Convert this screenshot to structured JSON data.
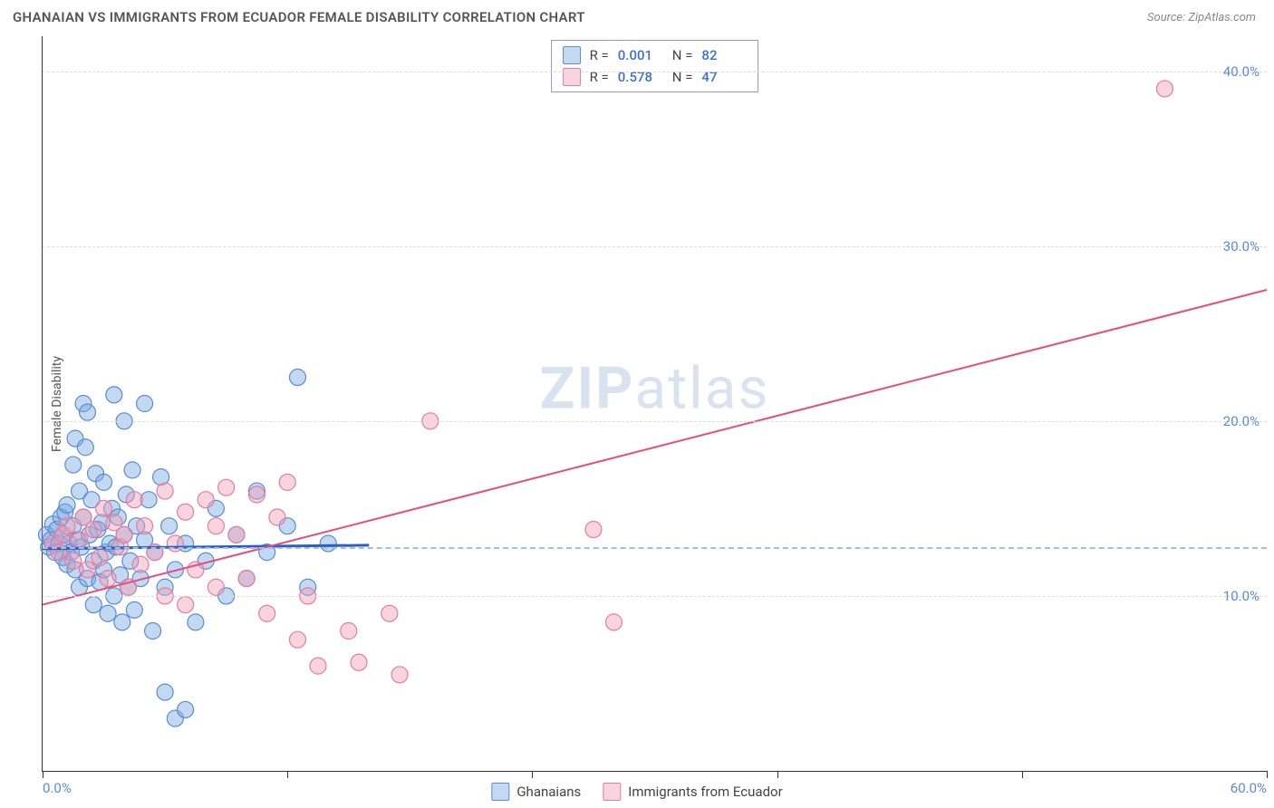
{
  "header": {
    "title": "GHANAIAN VS IMMIGRANTS FROM ECUADOR FEMALE DISABILITY CORRELATION CHART",
    "source": "Source: ZipAtlas.com"
  },
  "ylabel": "Female Disability",
  "watermark_a": "ZIP",
  "watermark_b": "atlas",
  "legend_top": {
    "series1": {
      "r_label": "R =",
      "r_value": "0.001",
      "n_label": "N =",
      "n_value": "82"
    },
    "series2": {
      "r_label": "R =",
      "r_value": "0.578",
      "n_label": "N =",
      "n_value": "47"
    }
  },
  "legend_bottom": {
    "series1_label": "Ghanaians",
    "series2_label": "Immigrants from Ecuador"
  },
  "chart": {
    "type": "scatter",
    "xlim": [
      0,
      60
    ],
    "ylim": [
      0,
      42
    ],
    "x_ticks": [
      0,
      12,
      24,
      36,
      48,
      60
    ],
    "x_tick_labels": {
      "0": "0.0%",
      "60": "60.0%"
    },
    "y_gridlines": [
      10,
      20,
      30,
      40
    ],
    "y_tick_labels": {
      "10": "10.0%",
      "20": "20.0%",
      "30": "30.0%",
      "40": "40.0%"
    },
    "mid_dash_y": 12.8,
    "colors": {
      "series1_fill": "rgba(120,170,225,0.45)",
      "series1_stroke": "#5b8bd4",
      "series2_fill": "rgba(240,160,185,0.45)",
      "series2_stroke": "#e87ba0",
      "trend1": "#2c5fc4",
      "trend2": "#e94b7a",
      "grid": "#ddd",
      "axis": "#333",
      "tick_text": "#5b8bd4"
    },
    "marker_radius": 9,
    "trend_width": 2,
    "series1_points": [
      [
        0.2,
        13.5
      ],
      [
        0.3,
        12.8
      ],
      [
        0.4,
        13.2
      ],
      [
        0.5,
        14.1
      ],
      [
        0.6,
        12.5
      ],
      [
        0.7,
        13.8
      ],
      [
        0.8,
        13.0
      ],
      [
        0.9,
        14.5
      ],
      [
        1.0,
        12.2
      ],
      [
        1.0,
        13.5
      ],
      [
        1.1,
        14.8
      ],
      [
        1.2,
        11.8
      ],
      [
        1.2,
        15.2
      ],
      [
        1.3,
        13.0
      ],
      [
        1.4,
        12.5
      ],
      [
        1.5,
        14.0
      ],
      [
        1.5,
        17.5
      ],
      [
        1.6,
        11.5
      ],
      [
        1.6,
        19.0
      ],
      [
        1.7,
        13.2
      ],
      [
        1.8,
        10.5
      ],
      [
        1.8,
        16.0
      ],
      [
        1.9,
        12.8
      ],
      [
        2.0,
        14.5
      ],
      [
        2.0,
        21.0
      ],
      [
        2.1,
        18.5
      ],
      [
        2.2,
        11.0
      ],
      [
        2.2,
        20.5
      ],
      [
        2.3,
        13.5
      ],
      [
        2.4,
        15.5
      ],
      [
        2.5,
        9.5
      ],
      [
        2.5,
        12.0
      ],
      [
        2.6,
        17.0
      ],
      [
        2.7,
        13.8
      ],
      [
        2.8,
        10.8
      ],
      [
        2.9,
        14.2
      ],
      [
        3.0,
        11.5
      ],
      [
        3.0,
        16.5
      ],
      [
        3.1,
        12.5
      ],
      [
        3.2,
        9.0
      ],
      [
        3.3,
        13.0
      ],
      [
        3.4,
        15.0
      ],
      [
        3.5,
        10.0
      ],
      [
        3.5,
        21.5
      ],
      [
        3.6,
        12.8
      ],
      [
        3.7,
        14.5
      ],
      [
        3.8,
        11.2
      ],
      [
        3.9,
        8.5
      ],
      [
        4.0,
        13.5
      ],
      [
        4.0,
        20.0
      ],
      [
        4.1,
        15.8
      ],
      [
        4.2,
        10.5
      ],
      [
        4.3,
        12.0
      ],
      [
        4.4,
        17.2
      ],
      [
        4.5,
        9.2
      ],
      [
        4.6,
        14.0
      ],
      [
        4.8,
        11.0
      ],
      [
        5.0,
        13.2
      ],
      [
        5.0,
        21.0
      ],
      [
        5.2,
        15.5
      ],
      [
        5.4,
        8.0
      ],
      [
        5.5,
        12.5
      ],
      [
        5.8,
        16.8
      ],
      [
        6.0,
        10.5
      ],
      [
        6.0,
        4.5
      ],
      [
        6.2,
        14.0
      ],
      [
        6.5,
        3.0
      ],
      [
        6.5,
        11.5
      ],
      [
        7.0,
        13.0
      ],
      [
        7.0,
        3.5
      ],
      [
        7.5,
        8.5
      ],
      [
        8.0,
        12.0
      ],
      [
        8.5,
        15.0
      ],
      [
        9.0,
        10.0
      ],
      [
        9.5,
        13.5
      ],
      [
        10.0,
        11.0
      ],
      [
        10.5,
        16.0
      ],
      [
        11.0,
        12.5
      ],
      [
        12.0,
        14.0
      ],
      [
        12.5,
        22.5
      ],
      [
        13.0,
        10.5
      ],
      [
        14.0,
        13.0
      ]
    ],
    "series2_points": [
      [
        0.5,
        13.0
      ],
      [
        0.8,
        12.5
      ],
      [
        1.0,
        13.5
      ],
      [
        1.2,
        14.0
      ],
      [
        1.5,
        12.0
      ],
      [
        1.8,
        13.2
      ],
      [
        2.0,
        14.5
      ],
      [
        2.2,
        11.5
      ],
      [
        2.5,
        13.8
      ],
      [
        2.8,
        12.2
      ],
      [
        3.0,
        15.0
      ],
      [
        3.2,
        11.0
      ],
      [
        3.5,
        14.2
      ],
      [
        3.8,
        12.8
      ],
      [
        4.0,
        13.5
      ],
      [
        4.2,
        10.5
      ],
      [
        4.5,
        15.5
      ],
      [
        4.8,
        11.8
      ],
      [
        5.0,
        14.0
      ],
      [
        5.5,
        12.5
      ],
      [
        6.0,
        16.0
      ],
      [
        6.0,
        10.0
      ],
      [
        6.5,
        13.0
      ],
      [
        7.0,
        14.8
      ],
      [
        7.0,
        9.5
      ],
      [
        7.5,
        11.5
      ],
      [
        8.0,
        15.5
      ],
      [
        8.5,
        10.5
      ],
      [
        8.5,
        14.0
      ],
      [
        9.0,
        16.2
      ],
      [
        9.5,
        13.5
      ],
      [
        10.0,
        11.0
      ],
      [
        10.5,
        15.8
      ],
      [
        11.0,
        9.0
      ],
      [
        11.5,
        14.5
      ],
      [
        12.0,
        16.5
      ],
      [
        12.5,
        7.5
      ],
      [
        13.0,
        10.0
      ],
      [
        13.5,
        6.0
      ],
      [
        15.0,
        8.0
      ],
      [
        15.5,
        6.2
      ],
      [
        17.0,
        9.0
      ],
      [
        17.5,
        5.5
      ],
      [
        19.0,
        20.0
      ],
      [
        27.0,
        13.8
      ],
      [
        28.0,
        8.5
      ],
      [
        55.0,
        39.0
      ]
    ],
    "trend_lines": {
      "series1": {
        "x1": 0,
        "y1": 12.7,
        "x2": 16,
        "y2": 12.9
      },
      "series2": {
        "x1": 0,
        "y1": 9.5,
        "x2": 60,
        "y2": 27.5
      }
    }
  }
}
